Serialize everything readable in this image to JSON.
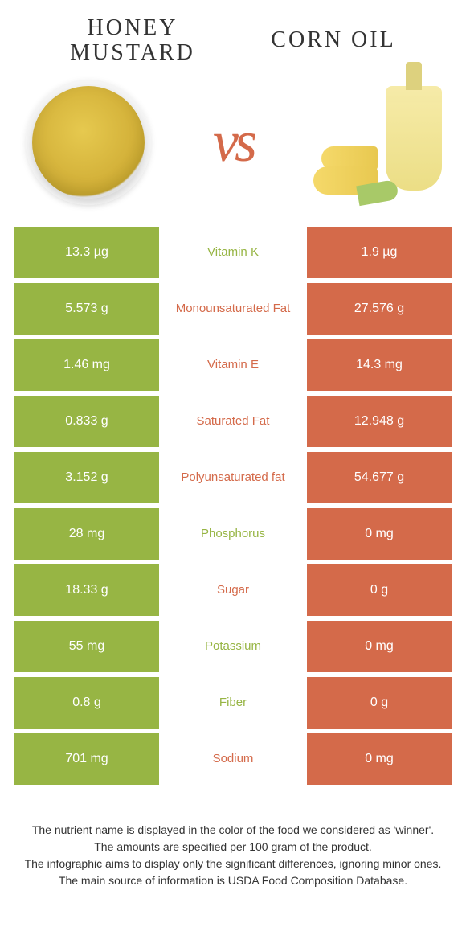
{
  "header": {
    "left_title": "HONEY MUSTARD",
    "right_title": "CORN OIL",
    "vs": "vs"
  },
  "colors": {
    "left": "#97b544",
    "right": "#d46a4a"
  },
  "rows": [
    {
      "left": "13.3 µg",
      "label": "Vitamin K",
      "right": "1.9 µg",
      "winner": "left"
    },
    {
      "left": "5.573 g",
      "label": "Monounsaturated Fat",
      "right": "27.576 g",
      "winner": "right"
    },
    {
      "left": "1.46 mg",
      "label": "Vitamin E",
      "right": "14.3 mg",
      "winner": "right"
    },
    {
      "left": "0.833 g",
      "label": "Saturated Fat",
      "right": "12.948 g",
      "winner": "right"
    },
    {
      "left": "3.152 g",
      "label": "Polyunsaturated fat",
      "right": "54.677 g",
      "winner": "right"
    },
    {
      "left": "28 mg",
      "label": "Phosphorus",
      "right": "0 mg",
      "winner": "left"
    },
    {
      "left": "18.33 g",
      "label": "Sugar",
      "right": "0 g",
      "winner": "right"
    },
    {
      "left": "55 mg",
      "label": "Potassium",
      "right": "0 mg",
      "winner": "left"
    },
    {
      "left": "0.8 g",
      "label": "Fiber",
      "right": "0 g",
      "winner": "left"
    },
    {
      "left": "701 mg",
      "label": "Sodium",
      "right": "0 mg",
      "winner": "right"
    }
  ],
  "footer": {
    "line1": "The nutrient name is displayed in the color of the food we considered as 'winner'.",
    "line2": "The amounts are specified per 100 gram of the product.",
    "line3": "The infographic aims to display only the significant differences, ignoring minor ones.",
    "line4": "The main source of information is USDA Food Composition Database."
  }
}
